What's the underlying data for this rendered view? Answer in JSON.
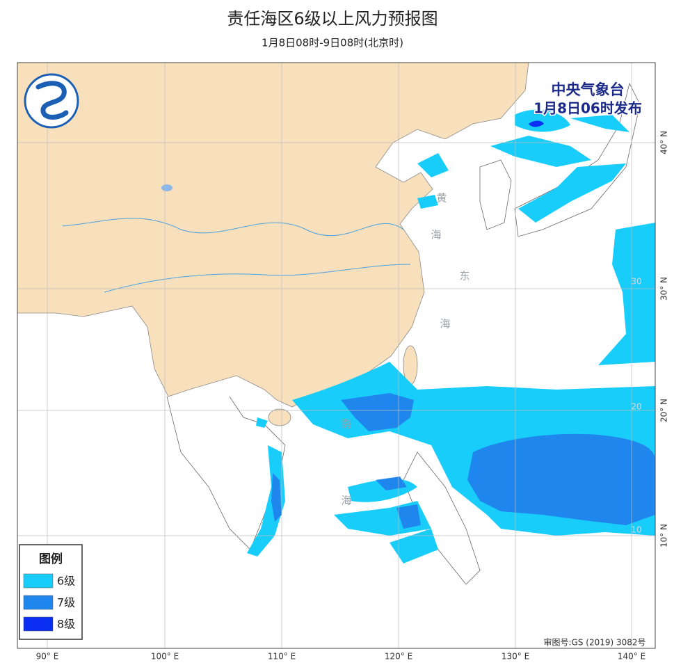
{
  "header": {
    "title": "责任海区6级以上风力预报图",
    "subtitle": "1月8日08时-9日08时(北京时)"
  },
  "issuer": {
    "agency": "中央气象台",
    "time": "1月8日06时发布"
  },
  "legend": {
    "title": "图例",
    "items": [
      {
        "label": "6级",
        "color": "#19cdfa"
      },
      {
        "label": "7级",
        "color": "#1f86ee"
      },
      {
        "label": "8级",
        "color": "#0a2ef2"
      }
    ]
  },
  "sea_labels": [
    "黄",
    "海",
    "东",
    "海",
    "南",
    "海"
  ],
  "lon_labels": [
    "90° E",
    "100° E",
    "110° E",
    "120° E",
    "130° E",
    "140° E"
  ],
  "lat_labels": [
    "40° N",
    "30° N",
    "20° N",
    "10° N"
  ],
  "inner_lat_labels": [
    "30",
    "20",
    "10"
  ],
  "footer": {
    "approval": "审图号:GS (2019) 3082号"
  }
}
